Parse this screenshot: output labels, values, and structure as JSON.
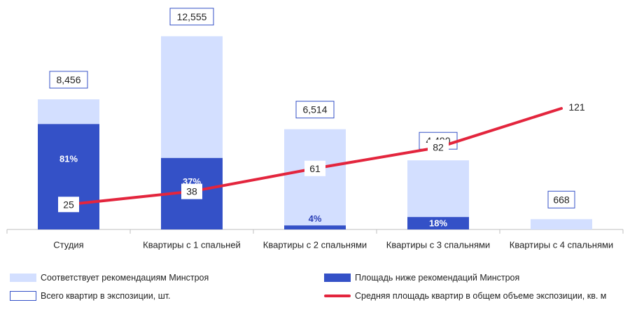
{
  "chart_data": {
    "type": "bar",
    "categories": [
      "Студия",
      "Квартиры с 1 спальней",
      "Квартиры с 2 спальнями",
      "Квартиры с 3 спальнями",
      "Квартиры с 4 спальнями"
    ],
    "series": [
      {
        "name": "Площадь ниже рекомендаций Минстроя",
        "values": [
          6849,
          4645,
          261,
          808,
          0
        ],
        "pct_labels": [
          "81%",
          "37%",
          "4%",
          "18%",
          ""
        ]
      },
      {
        "name": "Соответствует рекомендациям Минстроя",
        "values": [
          1607,
          7910,
          6253,
          3682,
          668
        ]
      },
      {
        "name": "Всего квартир в экспозиции, шт.",
        "values": [
          8456,
          12555,
          6514,
          4490,
          668
        ],
        "labels": [
          "8,456",
          "12,555",
          "6,514",
          "4,490",
          "668"
        ]
      },
      {
        "name": "Средняя площадь квартир в общем объеме экспозиции, кв. м",
        "type": "line",
        "values": [
          25,
          38,
          61,
          82,
          121
        ],
        "labels": [
          "25",
          "38",
          "61",
          "82",
          "121"
        ]
      }
    ],
    "ylim": [
      0,
      13000
    ],
    "line_ylim": [
      0,
      200
    ],
    "grid": false,
    "legend": "bottom",
    "colors": {
      "light": "#d3dfff",
      "dark": "#3451c7",
      "line": "#e3253d",
      "box_border": "#3451c7"
    }
  },
  "legend": {
    "light": "Соответствует рекомендациям Минстроя",
    "dark": "Площадь ниже рекомендаций Минстроя",
    "box": "Всего квартир в экспозиции, шт.",
    "line": "Средняя площадь квартир в общем объеме экспозиции, кв. м"
  }
}
